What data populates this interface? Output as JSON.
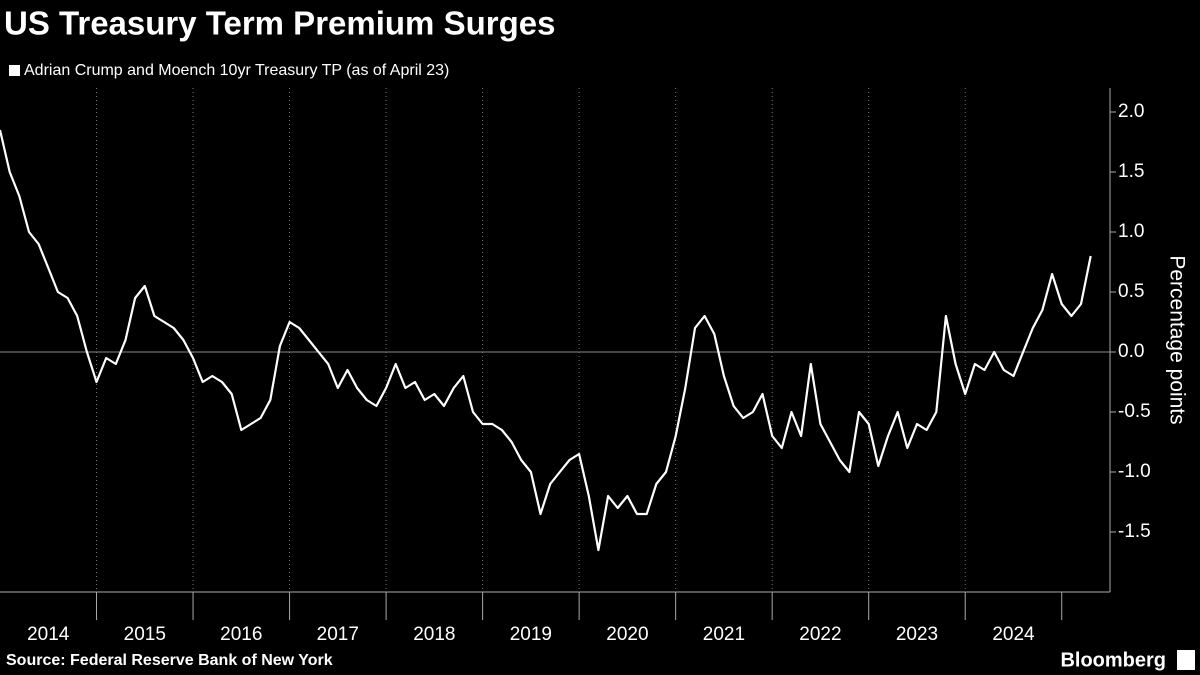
{
  "chart_data": {
    "type": "line",
    "title": "US Treasury Term Premium Surges",
    "y_label": "Percentage points",
    "source": "Source: Federal Reserve Bank of New York",
    "brand": "Bloomberg",
    "x": [
      2014.0,
      2014.1,
      2014.2,
      2014.3,
      2014.4,
      2014.5,
      2014.6,
      2014.7,
      2014.8,
      2014.9,
      2015.0,
      2015.1,
      2015.2,
      2015.3,
      2015.4,
      2015.5,
      2015.6,
      2015.7,
      2015.8,
      2015.9,
      2016.0,
      2016.1,
      2016.2,
      2016.3,
      2016.4,
      2016.5,
      2016.6,
      2016.7,
      2016.8,
      2016.9,
      2017.0,
      2017.1,
      2017.2,
      2017.3,
      2017.4,
      2017.5,
      2017.6,
      2017.7,
      2017.8,
      2017.9,
      2018.0,
      2018.1,
      2018.2,
      2018.3,
      2018.4,
      2018.5,
      2018.6,
      2018.7,
      2018.8,
      2018.9,
      2019.0,
      2019.1,
      2019.2,
      2019.3,
      2019.4,
      2019.5,
      2019.6,
      2019.7,
      2019.8,
      2019.9,
      2020.0,
      2020.1,
      2020.2,
      2020.3,
      2020.4,
      2020.5,
      2020.6,
      2020.7,
      2020.8,
      2020.9,
      2021.0,
      2021.1,
      2021.2,
      2021.3,
      2021.4,
      2021.5,
      2021.6,
      2021.7,
      2021.8,
      2021.9,
      2022.0,
      2022.1,
      2022.2,
      2022.3,
      2022.4,
      2022.5,
      2022.6,
      2022.7,
      2022.8,
      2022.9,
      2023.0,
      2023.1,
      2023.2,
      2023.3,
      2023.4,
      2023.5,
      2023.6,
      2023.7,
      2023.8,
      2023.9,
      2024.0,
      2024.1,
      2024.2,
      2024.3,
      2024.4,
      2024.5,
      2024.6,
      2024.7,
      2024.8,
      2024.9,
      2025.0,
      2025.1,
      2025.2,
      2025.3
    ],
    "series": [
      {
        "name": "Adrian Crump and Moench 10yr Treasury TP (as of April 23)",
        "color": "#ffffff",
        "values": [
          1.85,
          1.5,
          1.3,
          1.0,
          0.9,
          0.7,
          0.5,
          0.45,
          0.3,
          0.0,
          -0.25,
          -0.05,
          -0.1,
          0.1,
          0.45,
          0.55,
          0.3,
          0.25,
          0.2,
          0.1,
          -0.05,
          -0.25,
          -0.2,
          -0.25,
          -0.35,
          -0.65,
          -0.6,
          -0.55,
          -0.4,
          0.05,
          0.25,
          0.2,
          0.1,
          0.0,
          -0.1,
          -0.3,
          -0.15,
          -0.3,
          -0.4,
          -0.45,
          -0.3,
          -0.1,
          -0.3,
          -0.25,
          -0.4,
          -0.35,
          -0.45,
          -0.3,
          -0.2,
          -0.5,
          -0.6,
          -0.6,
          -0.65,
          -0.75,
          -0.9,
          -1.0,
          -1.35,
          -1.1,
          -1.0,
          -0.9,
          -0.85,
          -1.2,
          -1.65,
          -1.2,
          -1.3,
          -1.2,
          -1.35,
          -1.35,
          -1.1,
          -1.0,
          -0.7,
          -0.3,
          0.2,
          0.3,
          0.15,
          -0.2,
          -0.45,
          -0.55,
          -0.5,
          -0.35,
          -0.7,
          -0.8,
          -0.5,
          -0.7,
          -0.1,
          -0.6,
          -0.75,
          -0.9,
          -1.0,
          -0.5,
          -0.6,
          -0.95,
          -0.7,
          -0.5,
          -0.8,
          -0.6,
          -0.65,
          -0.5,
          0.3,
          -0.1,
          -0.35,
          -0.1,
          -0.15,
          0.0,
          -0.15,
          -0.2,
          0.0,
          0.2,
          0.35,
          0.65,
          0.4,
          0.3,
          0.4,
          0.8
        ]
      }
    ],
    "xlim": [
      2014,
      2025.5
    ],
    "xticks": [
      {
        "value": 2014,
        "label": "2014"
      },
      {
        "value": 2015,
        "label": "2015"
      },
      {
        "value": 2016,
        "label": "2016"
      },
      {
        "value": 2017,
        "label": "2017"
      },
      {
        "value": 2018,
        "label": "2018"
      },
      {
        "value": 2019,
        "label": "2019"
      },
      {
        "value": 2020,
        "label": "2020"
      },
      {
        "value": 2021,
        "label": "2021"
      },
      {
        "value": 2022,
        "label": "2022"
      },
      {
        "value": 2023,
        "label": "2023"
      },
      {
        "value": 2024,
        "label": "2024"
      }
    ],
    "ylim": [
      -2,
      2.2
    ],
    "yticks": [
      {
        "value": 2,
        "label": "2.0"
      },
      {
        "value": 1.5,
        "label": "1.5"
      },
      {
        "value": 1,
        "label": "1.0"
      },
      {
        "value": 0.5,
        "label": "0.5"
      },
      {
        "value": 0,
        "label": "0.0"
      },
      {
        "value": -0.5,
        "label": "-0.5"
      },
      {
        "value": -1,
        "label": "-1.0"
      },
      {
        "value": -1.5,
        "label": "-1.5"
      }
    ],
    "zero_line": true
  }
}
